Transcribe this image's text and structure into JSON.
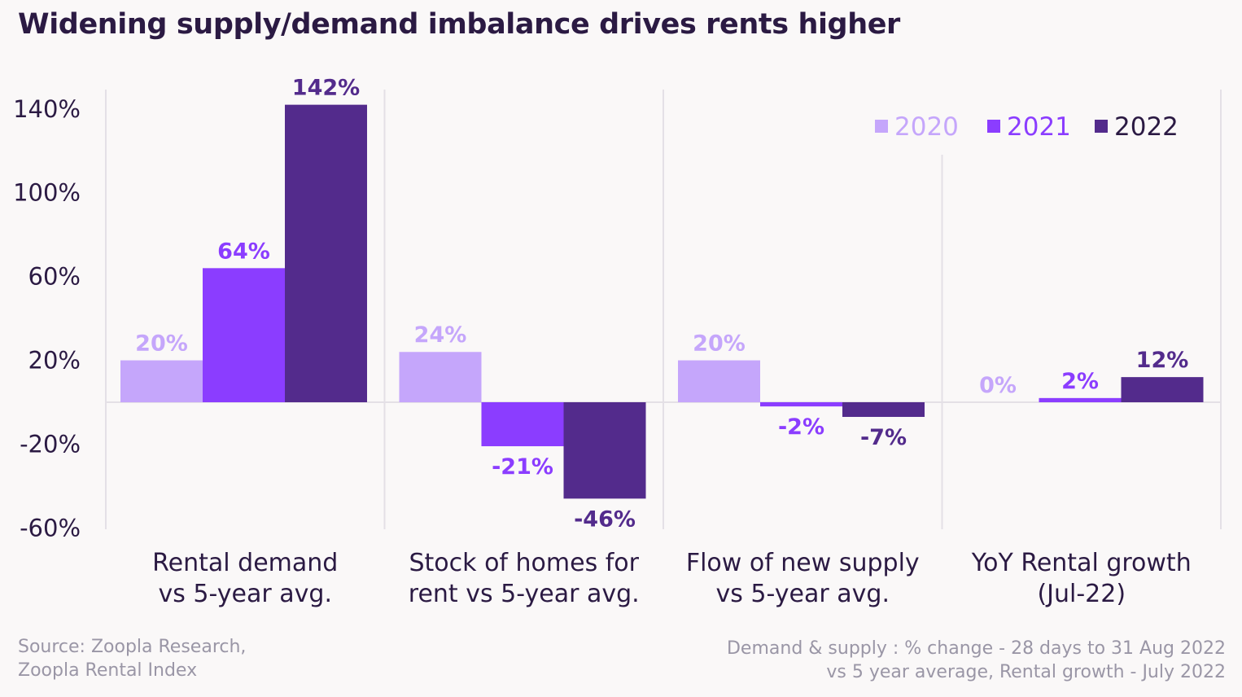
{
  "title": "Widening supply/demand imbalance drives rents higher",
  "footer": {
    "source_line1": "Source: Zoopla Research,",
    "source_line2": "Zoopla Rental Index",
    "note_line1": "Demand & supply : % change - 28 days to 31 Aug 2022",
    "note_line2": "vs 5 year average, Rental growth - July 2022"
  },
  "chart_data": {
    "type": "bar",
    "categories": [
      [
        "Rental demand",
        "vs 5-year avg."
      ],
      [
        "Stock of homes for",
        "rent vs 5-year avg."
      ],
      [
        "Flow of new supply",
        "vs 5-year avg."
      ],
      [
        "YoY Rental growth",
        "(Jul-22)"
      ]
    ],
    "series": [
      {
        "name": "2020",
        "color": "#c5a6fb",
        "values": [
          20,
          24,
          20,
          0
        ],
        "labels": [
          "20%",
          "24%",
          "20%",
          "0%"
        ]
      },
      {
        "name": "2021",
        "color": "#8b3dff",
        "values": [
          64,
          -21,
          -2,
          2
        ],
        "labels": [
          "64%",
          "-21%",
          "-2%",
          "2%"
        ]
      },
      {
        "name": "2022",
        "color": "#532b8c",
        "values": [
          142,
          -46,
          -7,
          12
        ],
        "labels": [
          "142%",
          "-46%",
          "-7%",
          "12%"
        ]
      }
    ],
    "yticks": [
      140,
      100,
      60,
      20,
      -20,
      -60
    ],
    "ytick_labels": [
      "140%",
      "100%",
      "60%",
      "20%",
      "-20%",
      "-60%"
    ],
    "ylim": [
      -60,
      150
    ],
    "legend_position": "top-right",
    "legend_text_colors": [
      "#c5a6fb",
      "#8b3dff",
      "#2b1a43"
    ],
    "grid": false
  }
}
